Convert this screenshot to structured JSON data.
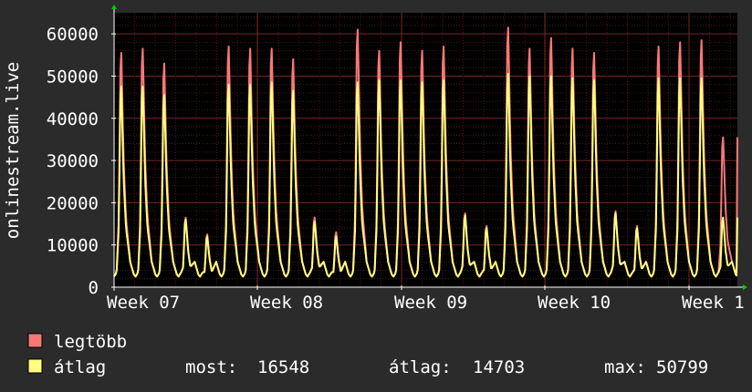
{
  "chart_data": {
    "type": "area",
    "ylabel": "onlinestream.live",
    "ylim": [
      0,
      65000
    ],
    "y_ticks": [
      0,
      10000,
      20000,
      30000,
      40000,
      50000,
      60000
    ],
    "x_tick_labels": [
      "Week 07",
      "Week 08",
      "Week 09",
      "Week 10",
      "Week 1"
    ],
    "grid": true,
    "series": [
      {
        "name": "legtöbb",
        "color": "#f87878",
        "daily_peaks": [
          55500,
          56500,
          53000,
          16500,
          12500,
          57000,
          56500,
          56500,
          54000,
          16500,
          13000,
          61000,
          56000,
          58000,
          56000,
          57000,
          17500,
          14500,
          61500,
          56500,
          59000,
          56500,
          55500,
          18000,
          14500,
          57000,
          58000,
          58500,
          35500
        ]
      },
      {
        "name": "átlag",
        "color": "#ffff80",
        "daily_peaks": [
          47500,
          47500,
          45500,
          16000,
          12000,
          48000,
          48000,
          48500,
          46500,
          15500,
          12000,
          48500,
          49000,
          49000,
          48500,
          49000,
          17000,
          14000,
          50500,
          50000,
          50000,
          49500,
          49000,
          17500,
          14000,
          49500,
          49500,
          49500,
          16500
        ]
      }
    ],
    "stats": {
      "most_label": "most:",
      "most": "16548",
      "atlag_label": "átlag:",
      "atlag": "14703",
      "max_label": "max:",
      "max": "50799"
    }
  },
  "colors": {
    "background": "#2b2b2b",
    "plot_background": "#000000",
    "grid": "#5a1a1a",
    "axis": "#ffffff",
    "arrow": "#00cc00"
  }
}
